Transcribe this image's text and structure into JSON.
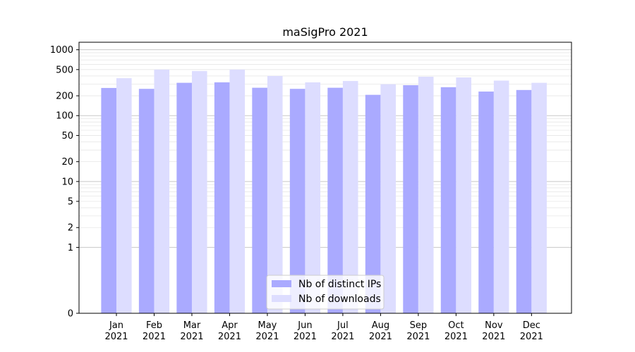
{
  "chart_data": {
    "type": "bar",
    "title": "maSigPro 2021",
    "xlabel": "",
    "ylabel": "",
    "y_scale": "symlog",
    "y_ticks": [
      0,
      1,
      2,
      5,
      10,
      20,
      50,
      100,
      200,
      500,
      1000
    ],
    "y_tick_labels": [
      "0",
      "1",
      "2",
      "5",
      "10",
      "20",
      "50",
      "100",
      "200",
      "500",
      "1000"
    ],
    "ylim": [
      0,
      1300
    ],
    "grid": true,
    "legend_position": "bottom-center",
    "categories": [
      {
        "month": "Jan",
        "year": "2021"
      },
      {
        "month": "Feb",
        "year": "2021"
      },
      {
        "month": "Mar",
        "year": "2021"
      },
      {
        "month": "Apr",
        "year": "2021"
      },
      {
        "month": "May",
        "year": "2021"
      },
      {
        "month": "Jun",
        "year": "2021"
      },
      {
        "month": "Jul",
        "year": "2021"
      },
      {
        "month": "Aug",
        "year": "2021"
      },
      {
        "month": "Sep",
        "year": "2021"
      },
      {
        "month": "Oct",
        "year": "2021"
      },
      {
        "month": "Nov",
        "year": "2021"
      },
      {
        "month": "Dec",
        "year": "2021"
      }
    ],
    "series": [
      {
        "name": "Nb of distinct IPs",
        "color": "#aaaaff",
        "values": [
          263,
          255,
          315,
          320,
          265,
          255,
          265,
          207,
          290,
          270,
          232,
          245
        ]
      },
      {
        "name": "Nb of downloads",
        "color": "#ddddff",
        "values": [
          370,
          500,
          475,
          500,
          400,
          320,
          335,
          300,
          390,
          380,
          340,
          315
        ]
      }
    ]
  }
}
